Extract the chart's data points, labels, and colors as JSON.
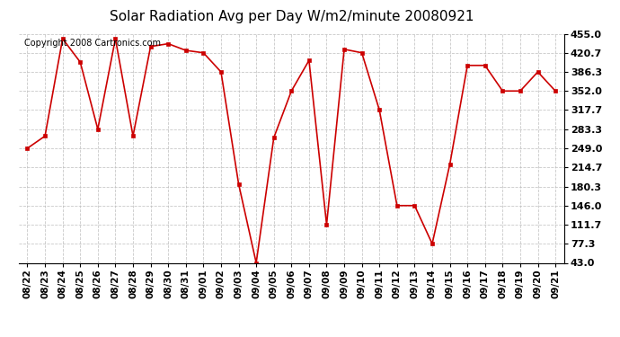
{
  "title": "Solar Radiation Avg per Day W/m2/minute 20080921",
  "copyright": "Copyright 2008 Cartronics.com",
  "labels": [
    "08/22",
    "08/23",
    "08/24",
    "08/25",
    "08/26",
    "08/27",
    "08/28",
    "08/29",
    "08/30",
    "08/31",
    "09/01",
    "09/02",
    "09/03",
    "09/04",
    "09/05",
    "09/06",
    "09/07",
    "09/08",
    "09/09",
    "09/10",
    "09/11",
    "09/12",
    "09/13",
    "09/14",
    "09/15",
    "09/16",
    "09/17",
    "09/18",
    "09/19",
    "09/20",
    "09/21"
  ],
  "values": [
    249.0,
    271.0,
    446.0,
    404.0,
    283.3,
    446.0,
    271.0,
    432.0,
    437.0,
    425.0,
    420.7,
    386.3,
    185.0,
    43.0,
    268.0,
    352.0,
    407.0,
    111.7,
    427.0,
    420.7,
    317.7,
    146.0,
    146.0,
    77.3,
    220.0,
    398.0,
    398.0,
    352.0,
    352.0,
    386.3,
    352.0
  ],
  "yticks": [
    43.0,
    77.3,
    111.7,
    146.0,
    180.3,
    214.7,
    249.0,
    283.3,
    317.7,
    352.0,
    386.3,
    420.7,
    455.0
  ],
  "ymin": 43.0,
  "ymax": 455.0,
  "line_color": "#cc0000",
  "marker_color": "#cc0000",
  "bg_color": "#ffffff",
  "grid_color": "#bbbbbb",
  "title_fontsize": 11,
  "copyright_fontsize": 7,
  "tick_fontsize": 7.5,
  "ytick_fontsize": 8
}
